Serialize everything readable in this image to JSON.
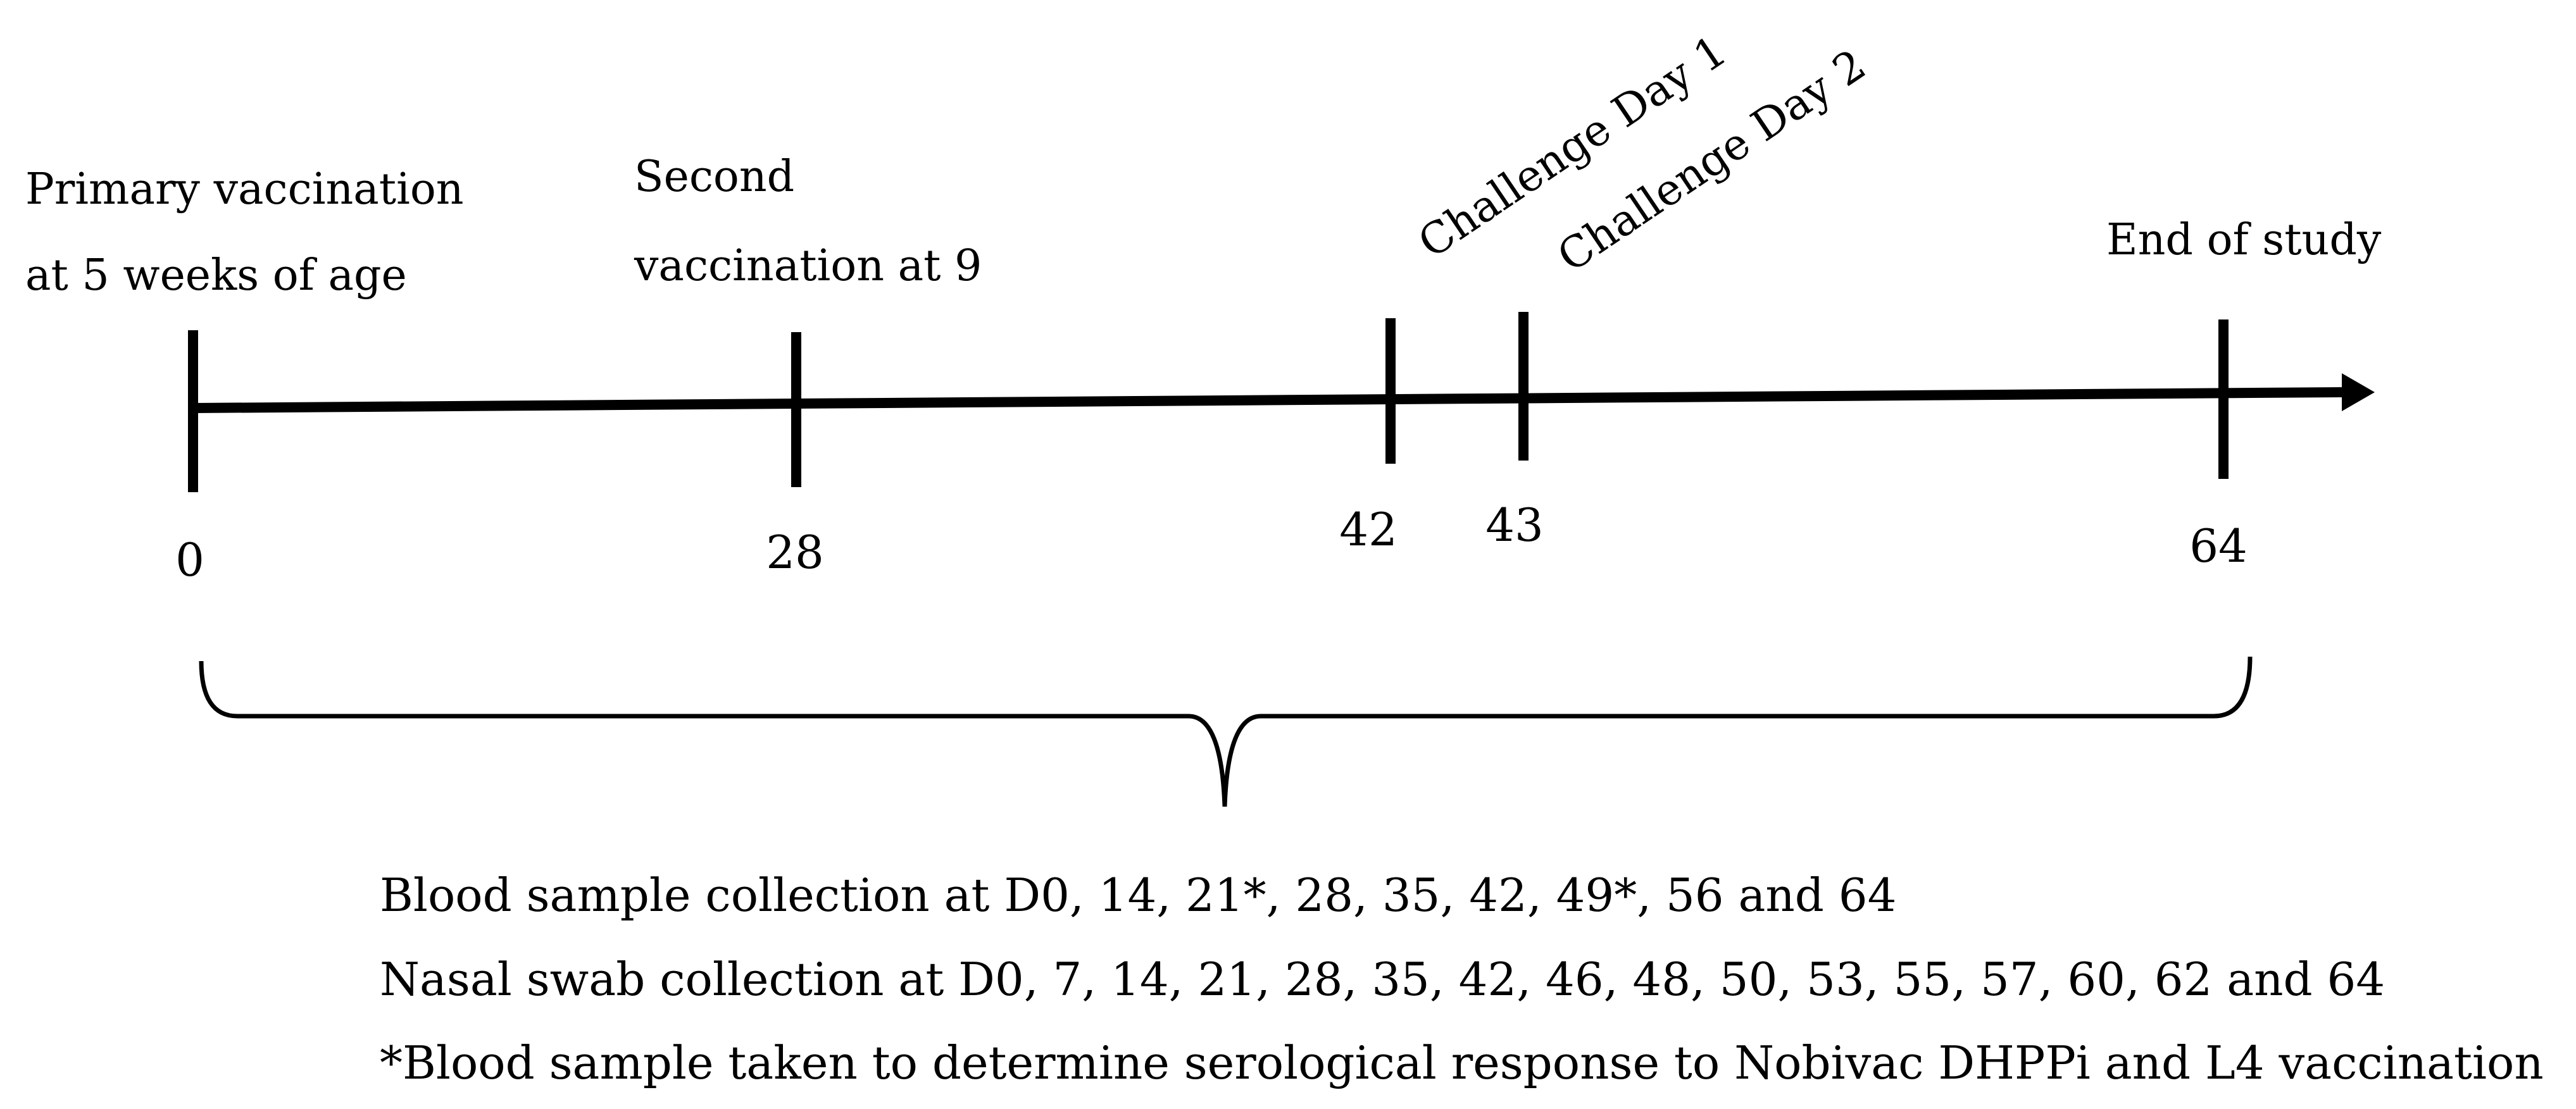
{
  "colors": {
    "line": "#000000",
    "background": "#ffffff"
  },
  "timeline": {
    "events": [
      {
        "day": "0",
        "label_lines": [
          "Primary vaccination",
          "at 5 weeks of age"
        ]
      },
      {
        "day": "28",
        "label_lines": [
          "Second",
          "vaccination at 9"
        ]
      },
      {
        "day": "42",
        "label_lines": [
          "Challenge Day 1"
        ]
      },
      {
        "day": "43",
        "label_lines": [
          "Challenge Day 2"
        ]
      },
      {
        "day": "64",
        "label_lines": [
          "End of study"
        ]
      }
    ]
  },
  "notes": [
    "Blood sample collection at D0, 14, 21*, 28, 35, 42, 49*, 56 and 64",
    "Nasal swab collection at D0, 7, 14, 21, 28, 35, 42, 46, 48, 50, 53, 55, 57, 60, 62 and 64",
    "*Blood sample taken to determine serological response to Nobivac DHPPi and L4 vaccination"
  ]
}
